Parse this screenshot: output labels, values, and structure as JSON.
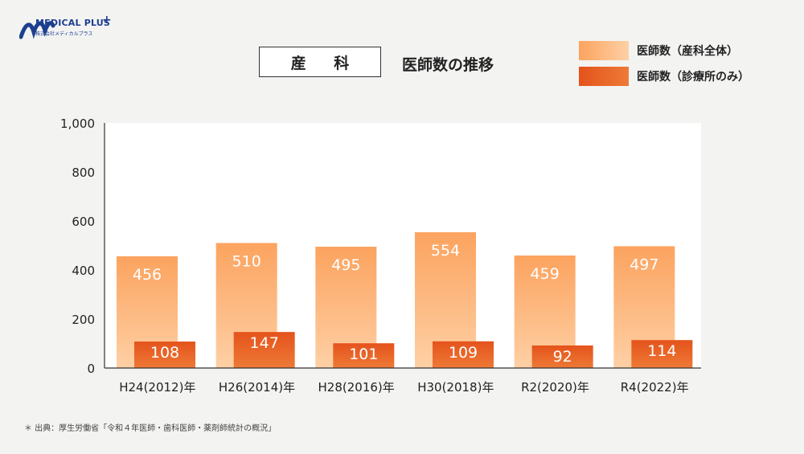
{
  "logo": {
    "name": "MEDICAL PLUS",
    "plus": "+",
    "sub": "株式会社メディカルプラス"
  },
  "header": {
    "title": "産 科",
    "subtitle": "医師数の推移"
  },
  "source_note": "＊ 出典：厚生労働省「令和４年医師・歯科医師・薬剤師統計の概況」",
  "colors": {
    "total_top": "#fca35f",
    "total_bottom": "#fed0a5",
    "clinic_top": "#e4531c",
    "clinic_bottom": "#ee7a36",
    "total_label": "#ffffff",
    "clinic_label": "#ffffff"
  },
  "chart_data": {
    "type": "bar",
    "title": "医師数の推移",
    "categories": [
      "H24(2012)年",
      "H26(2014)年",
      "H28(2016)年",
      "H30(2018)年",
      "R2(2020)年",
      "R4(2022)年"
    ],
    "series": [
      {
        "name": "医師数（産科全体）",
        "values": [
          456,
          510,
          495,
          554,
          459,
          497
        ]
      },
      {
        "name": "医師数（診療所のみ）",
        "values": [
          108,
          147,
          101,
          109,
          92,
          114
        ]
      }
    ],
    "yticks": [
      "0",
      "200",
      "400",
      "600",
      "800",
      "1,000"
    ],
    "ylim": [
      0,
      1000
    ],
    "legend": "top-right",
    "grid": false
  }
}
